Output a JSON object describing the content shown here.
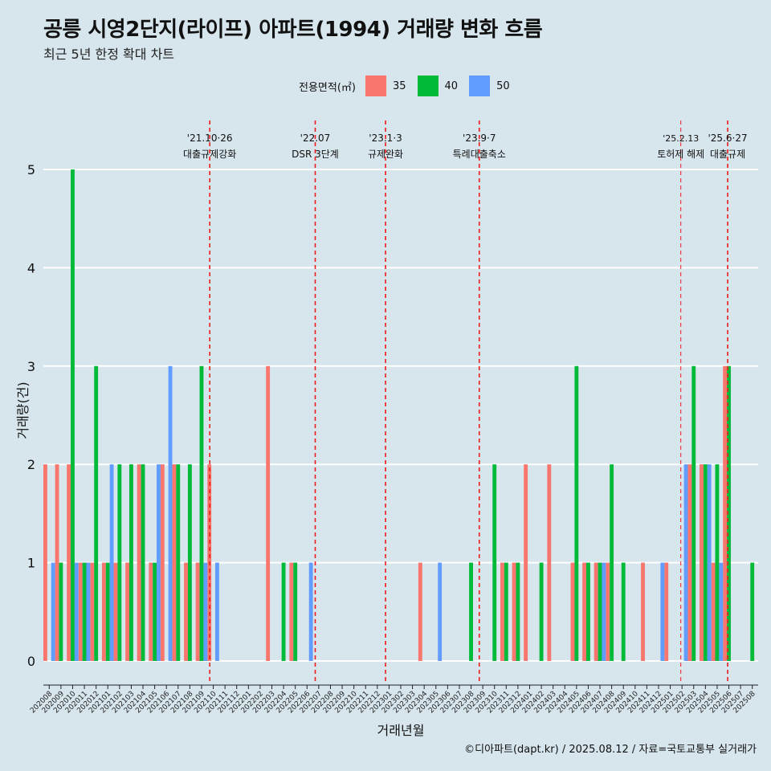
{
  "title": "공릉 시영2단지(라이프) 아파트(1994) 거래량 변화 흐름",
  "subtitle": "최근 5년 한정 확대 차트",
  "caption": "©디아파트(dapt.kr) / 2025.08.12 / 자료=국토교통부 실거래가",
  "legend": {
    "title": "전용면적(㎡)",
    "items": [
      {
        "label": "35",
        "color": "#f8766d"
      },
      {
        "label": "40",
        "color": "#00ba38"
      },
      {
        "label": "50",
        "color": "#619cff"
      }
    ]
  },
  "chart_data": {
    "type": "bar",
    "xlabel": "거래년월",
    "ylabel": "거래량(건)",
    "ylim": [
      0,
      5
    ],
    "yticks": [
      0,
      1,
      2,
      3,
      4,
      5
    ],
    "grid": true,
    "legend_position": "top",
    "categories": [
      "202008",
      "202009",
      "202010",
      "202011",
      "202012",
      "202101",
      "202102",
      "202103",
      "202104",
      "202105",
      "202106",
      "202107",
      "202108",
      "202109",
      "202110",
      "202111",
      "202112",
      "202201",
      "202202",
      "202203",
      "202204",
      "202205",
      "202206",
      "202207",
      "202208",
      "202209",
      "202210",
      "202211",
      "202212",
      "202301",
      "202302",
      "202303",
      "202304",
      "202305",
      "202306",
      "202307",
      "202308",
      "202309",
      "202310",
      "202311",
      "202312",
      "202401",
      "202402",
      "202403",
      "202404",
      "202405",
      "202406",
      "202407",
      "202408",
      "202409",
      "202410",
      "202411",
      "202412",
      "202501",
      "202502",
      "202503",
      "202504",
      "202505",
      "202506",
      "202507",
      "202508"
    ],
    "series": [
      {
        "name": "35",
        "color": "#f8766d",
        "values": [
          2,
          2,
          2,
          1,
          1,
          1,
          1,
          1,
          2,
          1,
          2,
          2,
          1,
          1,
          2,
          0,
          0,
          0,
          0,
          3,
          0,
          1,
          0,
          0,
          0,
          0,
          0,
          0,
          0,
          0,
          0,
          0,
          1,
          0,
          0,
          0,
          0,
          0,
          0,
          1,
          1,
          2,
          0,
          2,
          0,
          1,
          1,
          1,
          1,
          0,
          0,
          1,
          0,
          1,
          0,
          2,
          2,
          1,
          3,
          0,
          0
        ]
      },
      {
        "name": "40",
        "color": "#00ba38",
        "values": [
          0,
          1,
          5,
          1,
          3,
          1,
          2,
          2,
          2,
          1,
          0,
          2,
          2,
          3,
          0,
          0,
          0,
          0,
          0,
          0,
          1,
          1,
          0,
          0,
          0,
          0,
          0,
          0,
          0,
          0,
          0,
          0,
          0,
          0,
          0,
          0,
          1,
          0,
          2,
          1,
          1,
          0,
          1,
          0,
          0,
          3,
          1,
          1,
          2,
          1,
          0,
          0,
          0,
          0,
          0,
          3,
          2,
          2,
          3,
          0,
          1
        ]
      },
      {
        "name": "50",
        "color": "#619cff",
        "values": [
          1,
          0,
          1,
          1,
          0,
          2,
          0,
          0,
          0,
          2,
          3,
          0,
          0,
          1,
          1,
          0,
          0,
          0,
          0,
          0,
          0,
          0,
          1,
          0,
          0,
          0,
          0,
          0,
          0,
          0,
          0,
          0,
          0,
          1,
          0,
          0,
          0,
          0,
          0,
          0,
          0,
          0,
          0,
          0,
          0,
          0,
          0,
          1,
          0,
          0,
          0,
          0,
          1,
          0,
          2,
          0,
          2,
          1,
          0,
          0,
          0
        ]
      }
    ],
    "events": [
      {
        "date": "'21.10·26",
        "label": "대출규제강화",
        "at": 14.2
      },
      {
        "date": "'22.07",
        "label": "DSR 3단계",
        "at": 23.2
      },
      {
        "date": "'23.1·3",
        "label": "규제완화",
        "at": 29.2
      },
      {
        "date": "'23.9·7",
        "label": "특례대출축소",
        "at": 37.2
      },
      {
        "date": "'25.2.13",
        "label": "토허제 해제",
        "at": 54.4
      },
      {
        "date": "'25.6·27",
        "label": "대출규제",
        "at": 58.4
      }
    ]
  }
}
